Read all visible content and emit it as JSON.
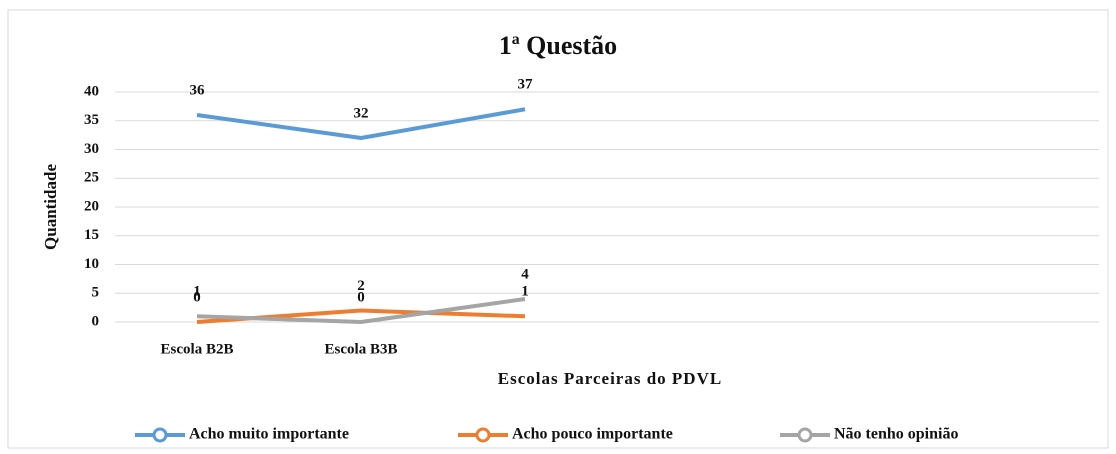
{
  "chart_data": {
    "type": "line",
    "title": "1ª Questão",
    "x_label": "Escolas Parceiras do PDVL",
    "y_label": "Quantidade",
    "categories": [
      "Escola B2B",
      "Escola B3B",
      null,
      null,
      null,
      null
    ],
    "series": [
      {
        "name": "Acho muito importante",
        "color": "#5b9bd5",
        "values": [
          36,
          32,
          37,
          null,
          null,
          null
        ]
      },
      {
        "name": "Acho pouco importante",
        "color": "#ed7d31",
        "values": [
          0,
          2,
          1,
          null,
          null,
          null
        ]
      },
      {
        "name": "Não tenho opinião",
        "color": "#a5a5a5",
        "values": [
          1,
          0,
          4,
          null,
          null,
          null
        ]
      }
    ],
    "ylim": [
      0,
      40
    ],
    "yticks": [
      0,
      5,
      10,
      15,
      20,
      25,
      30,
      35,
      40
    ],
    "grid": true,
    "legend": "bottom"
  }
}
